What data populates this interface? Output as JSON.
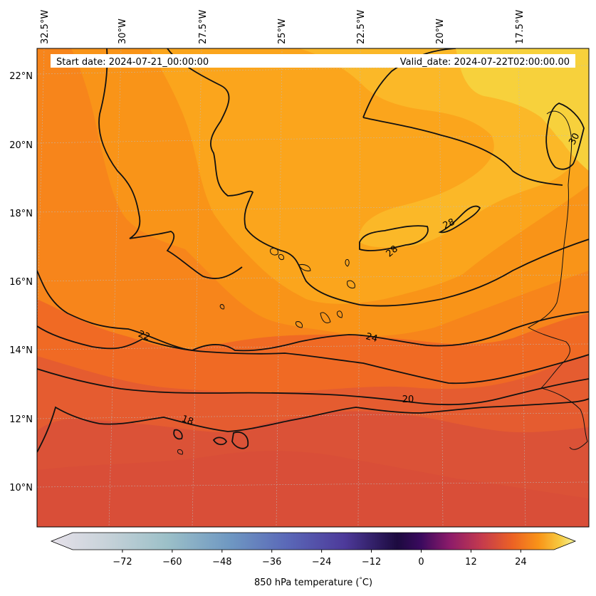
{
  "header": {
    "start_date": "Start date: 2024-07-21_00:00:00",
    "valid_date": "Valid_date: 2024-07-22T02:00:00.00"
  },
  "map": {
    "lon_ticks": [
      "32.5°W",
      "30°W",
      "27.5°W",
      "25°W",
      "22.5°W",
      "20°W",
      "17.5°W"
    ],
    "lat_ticks": [
      "22°N",
      "20°N",
      "18°N",
      "16°N",
      "14°N",
      "12°N",
      "10°N"
    ],
    "contour_labels": [
      "30",
      "28",
      "28",
      "24",
      "22",
      "20",
      "18"
    ],
    "fill_colors": {
      "lt16": "#d94e38",
      "16_18": "#db5237",
      "18_20": "#e55c30",
      "20_22": "#f06a24",
      "22_24": "#f7851b",
      "24_26": "#f99418",
      "26_28": "#fba51c",
      "28_30": "#fbb828",
      "gt30": "#f7d13c"
    }
  },
  "colorbar": {
    "label": "850 hPa temperature (",
    "label_deg": "°",
    "label_unit": "C)",
    "ticks": [
      "−72",
      "−60",
      "−48",
      "−36",
      "−24",
      "−12",
      "0",
      "12",
      "24"
    ],
    "tick_values": [
      -72,
      -60,
      -48,
      -36,
      -24,
      -12,
      0,
      12,
      24
    ],
    "min": -84,
    "max": 32
  }
}
